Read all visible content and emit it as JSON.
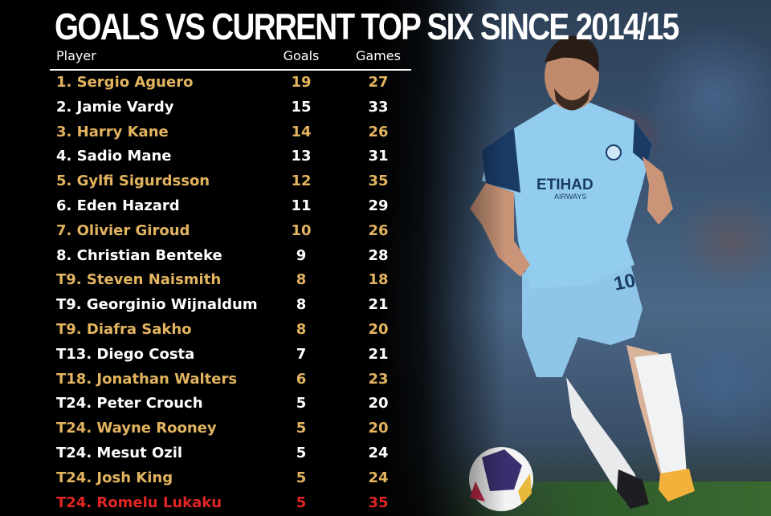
{
  "title": "GOALS VS CURRENT TOP SIX SINCE 2014/15",
  "columns": {
    "player": "Player",
    "goals": "Goals",
    "games": "Games"
  },
  "colors": {
    "gold": "#e3b45f",
    "white": "#ffffff",
    "red": "#e12424"
  },
  "rows": [
    {
      "player": "1. Sergio Aguero",
      "goals": "19",
      "games": "27",
      "color": "gold"
    },
    {
      "player": "2. Jamie Vardy",
      "goals": "15",
      "games": "33",
      "color": "white"
    },
    {
      "player": "3. Harry Kane",
      "goals": "14",
      "games": "26",
      "color": "gold"
    },
    {
      "player": "4. Sadio Mane",
      "goals": "13",
      "games": "31",
      "color": "white"
    },
    {
      "player": "5. Gylfi Sigurdsson",
      "goals": "12",
      "games": "35",
      "color": "gold"
    },
    {
      "player": "6. Eden Hazard",
      "goals": "11",
      "games": "29",
      "color": "white"
    },
    {
      "player": "7. Olivier Giroud",
      "goals": "10",
      "games": "26",
      "color": "gold"
    },
    {
      "player": "8. Christian Benteke",
      "goals": "9",
      "games": "28",
      "color": "white"
    },
    {
      "player": "T9. Steven Naismith",
      "goals": "8",
      "games": "18",
      "color": "gold"
    },
    {
      "player": "T9. Georginio Wijnaldum",
      "goals": "8",
      "games": "21",
      "color": "white"
    },
    {
      "player": "T9. Diafra Sakho",
      "goals": "8",
      "games": "20",
      "color": "gold"
    },
    {
      "player": "T13. Diego Costa",
      "goals": "7",
      "games": "21",
      "color": "white"
    },
    {
      "player": "T18. Jonathan Walters",
      "goals": "6",
      "games": "23",
      "color": "gold"
    },
    {
      "player": "T24. Peter Crouch",
      "goals": "5",
      "games": "20",
      "color": "white"
    },
    {
      "player": "T24. Wayne Rooney",
      "goals": "5",
      "games": "20",
      "color": "gold"
    },
    {
      "player": "T24. Mesut Ozil",
      "goals": "5",
      "games": "24",
      "color": "white"
    },
    {
      "player": "T24. Josh King",
      "goals": "5",
      "games": "24",
      "color": "gold"
    },
    {
      "player": "T24. Romelu Lukaku",
      "goals": "5",
      "games": "35",
      "color": "red"
    }
  ],
  "photo": {
    "sponsor": "ETIHAD",
    "sponsor_sub": "AIRWAYS",
    "shirt_number": "10"
  }
}
